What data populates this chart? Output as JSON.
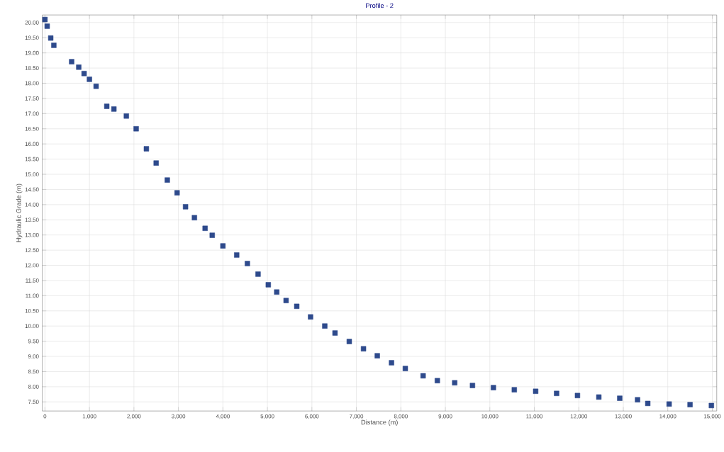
{
  "chart_data": {
    "type": "scatter",
    "title": "Profile - 2",
    "xlabel": "Distance (m)",
    "ylabel": "Hydraulic Grade (m)",
    "series": [
      {
        "color": "#2e4a8c",
        "x": [
          0,
          50,
          130,
          200,
          600,
          760,
          880,
          1000,
          1150,
          1390,
          1550,
          1830,
          2050,
          2280,
          2500,
          2750,
          2970,
          3160,
          3360,
          3600,
          3760,
          4000,
          4310,
          4550,
          4790,
          5020,
          5210,
          5420,
          5660,
          5970,
          6290,
          6520,
          6840,
          7160,
          7470,
          7790,
          8100,
          8500,
          8820,
          9210,
          9610,
          10080,
          10550,
          11030,
          11500,
          11970,
          12450,
          12920,
          13320,
          13550,
          14030,
          14500,
          14980
        ],
        "values": [
          20.1,
          19.88,
          19.49,
          19.25,
          18.71,
          18.53,
          18.32,
          18.13,
          17.9,
          17.24,
          17.15,
          16.92,
          16.5,
          15.84,
          15.37,
          14.81,
          14.39,
          13.93,
          13.57,
          13.22,
          12.99,
          12.64,
          12.34,
          12.06,
          11.71,
          11.36,
          11.12,
          10.84,
          10.65,
          10.3,
          10.0,
          9.77,
          9.49,
          9.25,
          9.02,
          8.79,
          8.6,
          8.36,
          8.2,
          8.13,
          8.04,
          7.97,
          7.9,
          7.85,
          7.78,
          7.71,
          7.66,
          7.62,
          7.57,
          7.45,
          7.43,
          7.41,
          7.38
        ]
      }
    ],
    "xlim": [
      -60,
      15100
    ],
    "ylim": [
      7.2,
      20.25
    ],
    "xticks": [
      0,
      {
        "value": 1000,
        "label": "1,000"
      },
      {
        "value": 2000,
        "label": "2,000"
      },
      {
        "value": 3000,
        "label": "3,000"
      },
      {
        "value": 4000,
        "label": "4,000"
      },
      {
        "value": 5000,
        "label": "5,000"
      },
      {
        "value": 6000,
        "label": "6,000"
      },
      {
        "value": 7000,
        "label": "7,000"
      },
      {
        "value": 8000,
        "label": "8,000"
      },
      {
        "value": 9000,
        "label": "9,000"
      },
      {
        "value": 10000,
        "label": "10,000"
      },
      {
        "value": 11000,
        "label": "11,000"
      },
      {
        "value": 12000,
        "label": "12,000"
      },
      {
        "value": 13000,
        "label": "13,000"
      },
      {
        "value": 14000,
        "label": "14,000"
      },
      {
        "value": 15000,
        "label": "15,000"
      }
    ],
    "yticks": [
      {
        "value": 7.5,
        "label": "7.50"
      },
      {
        "value": 8,
        "label": "8.00"
      },
      {
        "value": 8.5,
        "label": "8.50"
      },
      {
        "value": 9,
        "label": "9.00"
      },
      {
        "value": 9.5,
        "label": "9.50"
      },
      {
        "value": 10,
        "label": "10.00"
      },
      {
        "value": 10.5,
        "label": "10.50"
      },
      {
        "value": 11,
        "label": "11.00"
      },
      {
        "value": 11.5,
        "label": "11.50"
      },
      {
        "value": 12,
        "label": "12.00"
      },
      {
        "value": 12.5,
        "label": "12.50"
      },
      {
        "value": 13,
        "label": "13.00"
      },
      {
        "value": 13.5,
        "label": "13.50"
      },
      {
        "value": 14,
        "label": "14.00"
      },
      {
        "value": 14.5,
        "label": "14.50"
      },
      {
        "value": 15,
        "label": "15.00"
      },
      {
        "value": 15.5,
        "label": "15.50"
      },
      {
        "value": 16,
        "label": "16.00"
      },
      {
        "value": 16.5,
        "label": "16.50"
      },
      {
        "value": 17,
        "label": "17.00"
      },
      {
        "value": 17.5,
        "label": "17.50"
      },
      {
        "value": 18,
        "label": "18.00"
      },
      {
        "value": 18.5,
        "label": "18.50"
      },
      {
        "value": 19,
        "label": "19.00"
      },
      {
        "value": 19.5,
        "label": "19.50"
      },
      {
        "value": 20,
        "label": "20.00"
      }
    ],
    "grid": true,
    "marker": "square"
  }
}
